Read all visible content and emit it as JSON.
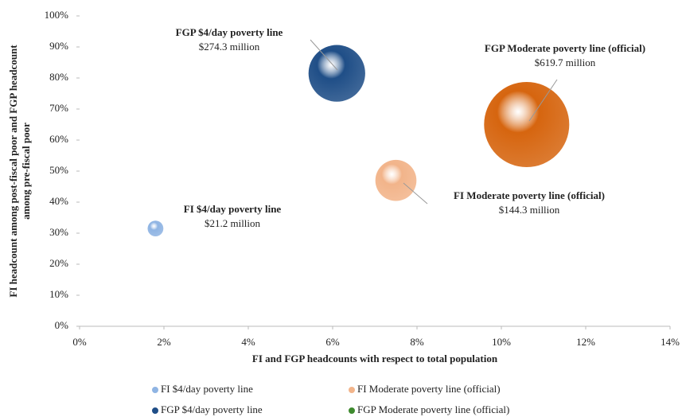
{
  "chart_data": {
    "type": "bubble",
    "x_label": "FI and FGP headcounts with respect to total population",
    "y_label": [
      "FI headcount among post-fiscal poor and FGP headcount",
      "among pre-fiscal poor"
    ],
    "xlim": [
      0,
      14
    ],
    "xticks": [
      {
        "value": 0,
        "label": "0%"
      },
      {
        "value": 2,
        "label": "2%"
      },
      {
        "value": 4,
        "label": "4%"
      },
      {
        "value": 6,
        "label": "6%"
      },
      {
        "value": 8,
        "label": "8%"
      },
      {
        "value": 10,
        "label": "10%"
      },
      {
        "value": 12,
        "label": "12%"
      },
      {
        "value": 14,
        "label": "14%"
      }
    ],
    "ylim": [
      0,
      100
    ],
    "yticks": [
      {
        "value": 0,
        "label": "0%"
      },
      {
        "value": 10,
        "label": "10%"
      },
      {
        "value": 20,
        "label": "20%"
      },
      {
        "value": 30,
        "label": "30%"
      },
      {
        "value": 40,
        "label": "40%"
      },
      {
        "value": 50,
        "label": "50%"
      },
      {
        "value": 60,
        "label": "60%"
      },
      {
        "value": 70,
        "label": "70%"
      },
      {
        "value": 80,
        "label": "80%"
      },
      {
        "value": 90,
        "label": "90%"
      },
      {
        "value": 100,
        "label": "100%"
      }
    ],
    "legend": "bottom",
    "series": [
      {
        "name": "FI $4/day poverty line",
        "color": "#8fb4e3",
        "legend_color": "#8fb4e3",
        "x": [
          1.8
        ],
        "values": [
          31.5
        ],
        "sizes": [
          21.2
        ],
        "value_labels": [
          "$21.2 million"
        ]
      },
      {
        "name": "FI Moderate poverty line (official)",
        "color": "#f2b48a",
        "legend_color": "#f2b48a",
        "x": [
          7.5
        ],
        "values": [
          47
        ],
        "sizes": [
          144.3
        ],
        "value_labels": [
          "$144.3 million"
        ]
      },
      {
        "name": "FGP $4/day poverty line",
        "color": "#1f4e87",
        "legend_color": "#1f4e87",
        "x": [
          6.1
        ],
        "values": [
          81.5
        ],
        "sizes": [
          274.3
        ],
        "value_labels": [
          "$274.3 million"
        ]
      },
      {
        "name": "FGP Moderate poverty line (official)",
        "color": "#d6650f",
        "legend_color": "#3e8a2e",
        "x": [
          10.6
        ],
        "values": [
          65
        ],
        "sizes": [
          619.7
        ],
        "value_labels": [
          "$619.7 million"
        ]
      }
    ]
  }
}
